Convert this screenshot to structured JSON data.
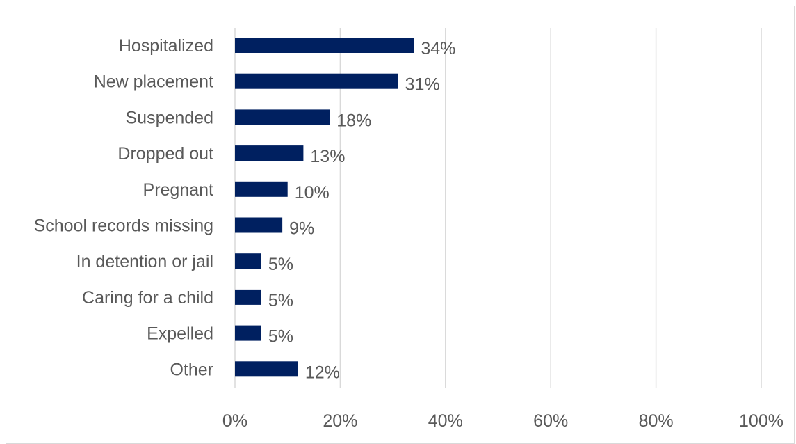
{
  "colors": {
    "bar": "#002060",
    "grid": "#d9d9d9",
    "text": "#595959",
    "border": "#d9d9d9"
  },
  "chart_data": {
    "type": "bar",
    "orientation": "horizontal",
    "categories": [
      "Hospitalized",
      "New placement",
      "Suspended",
      "Dropped out",
      "Pregnant",
      "School records missing",
      "In detention or jail",
      "Caring for a child",
      "Expelled",
      "Other"
    ],
    "values": [
      34,
      31,
      18,
      13,
      10,
      9,
      5,
      5,
      5,
      12
    ],
    "data_labels": [
      "34%",
      "31%",
      "18%",
      "13%",
      "10%",
      "9%",
      "5%",
      "5%",
      "5%",
      "12%"
    ],
    "x_ticks": [
      0,
      20,
      40,
      60,
      80,
      100
    ],
    "x_tick_labels": [
      "0%",
      "20%",
      "40%",
      "60%",
      "80%",
      "100%"
    ],
    "xlim": [
      0,
      100
    ],
    "grid": true,
    "legend": "none",
    "title": "",
    "xlabel": "",
    "ylabel": ""
  }
}
